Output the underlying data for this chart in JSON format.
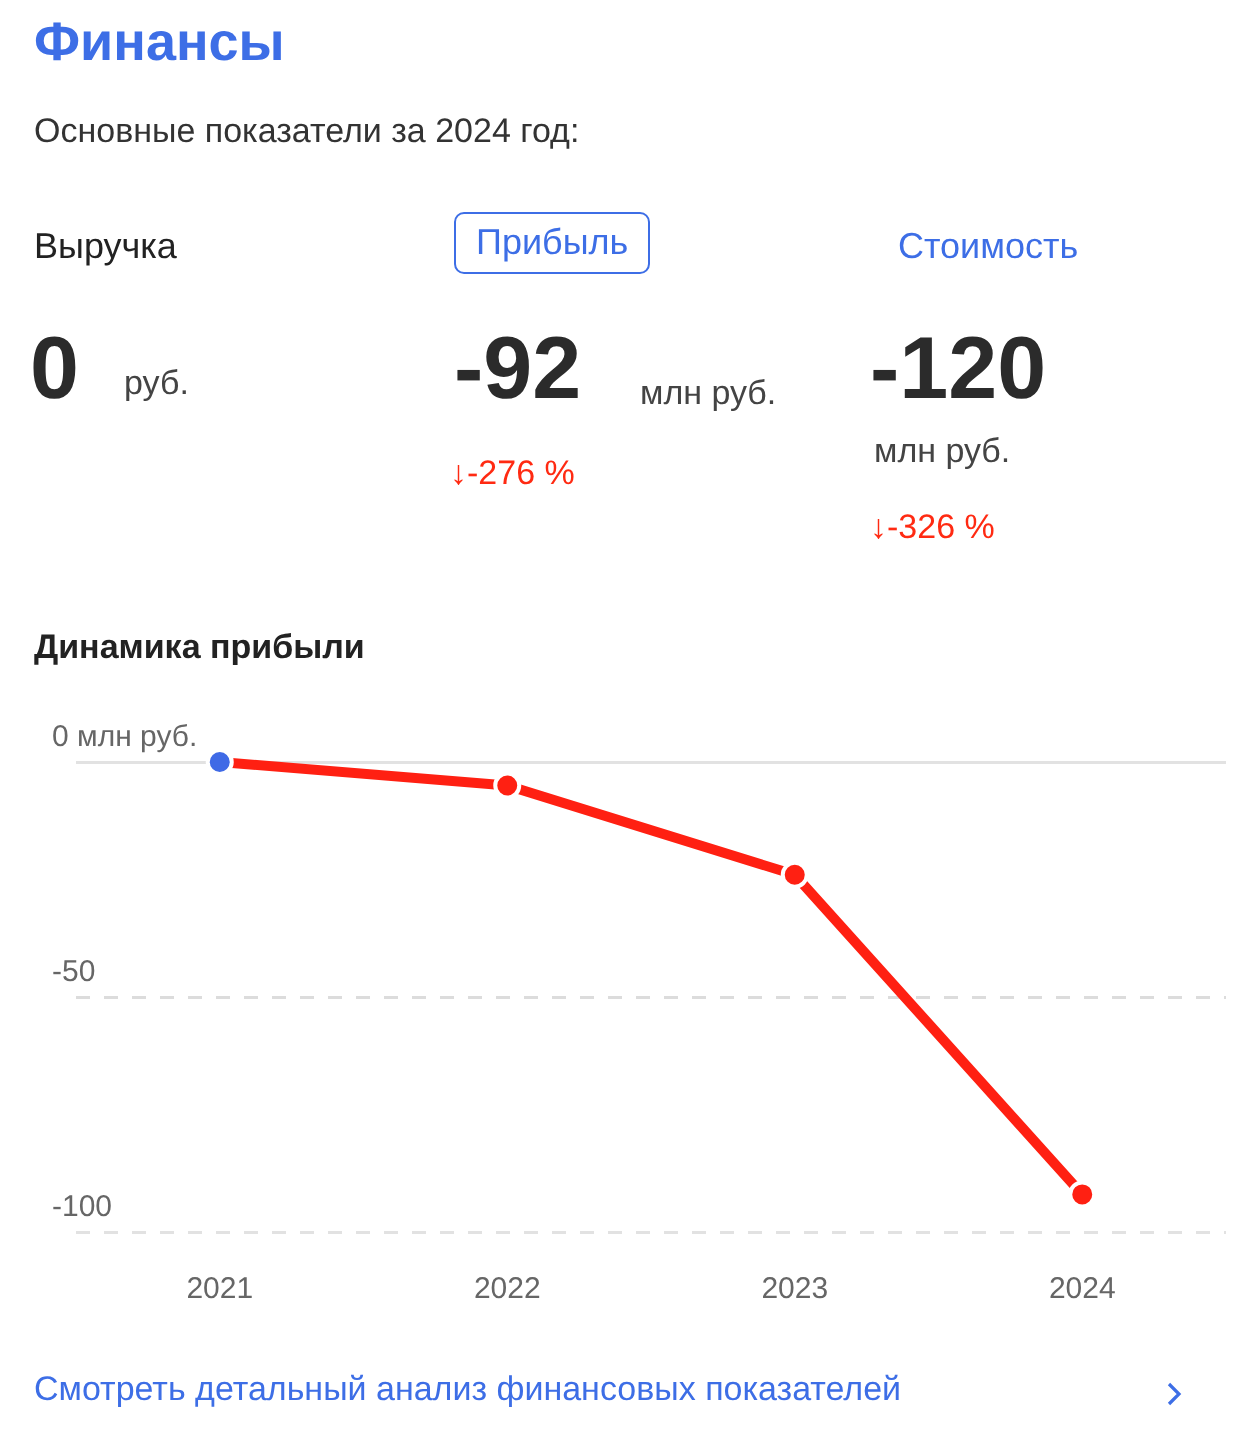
{
  "chart_data": [
    {
      "type": "other",
      "title": "Финансы",
      "subtitle": "Основные показатели за 2024 год:",
      "annotations": [
        "Выручка",
        "Прибыль",
        "Стоимость",
        "0",
        "руб.",
        "-92",
        "млн руб.",
        "↓-276 %",
        "-120",
        "млн руб.",
        "↓-326 %"
      ]
    },
    {
      "type": "line",
      "title": "Динамика прибыли",
      "categories": [
        "2021",
        "2022",
        "2023",
        "2024"
      ],
      "series": [
        {
          "color": "#ff2012",
          "colors": [
            "#3f6ae6",
            "#ff2012",
            "#ff2012",
            "#ff2012"
          ],
          "values": [
            0,
            -5,
            -24,
            -92
          ]
        }
      ],
      "ylim": [
        -100,
        0
      ],
      "yticks": [
        {
          "value": 0,
          "label": "0 млн руб."
        },
        -50,
        -100
      ],
      "grid": "y",
      "marker": "circle",
      "line_style": "solid",
      "annotations": [
        "Смотреть детальный анализ финансовых показателей"
      ]
    }
  ]
}
